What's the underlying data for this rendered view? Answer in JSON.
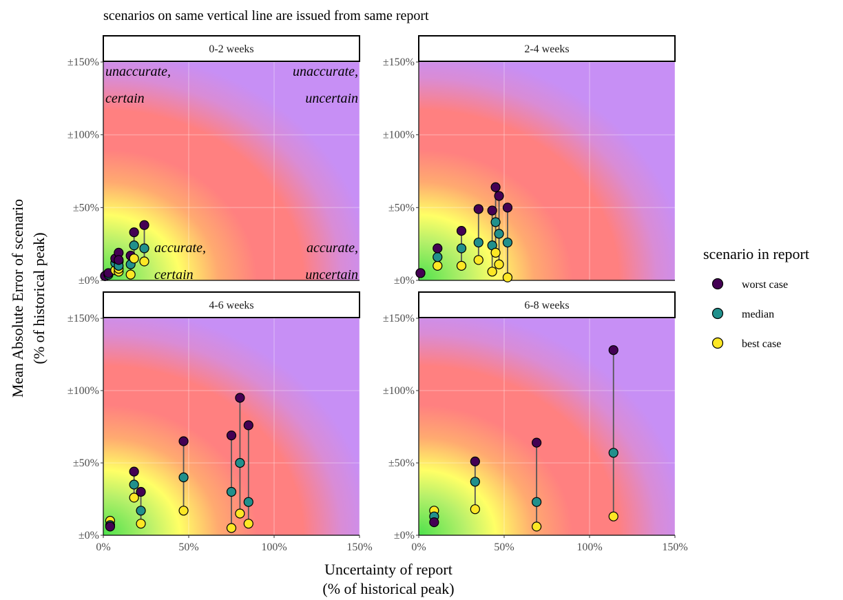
{
  "subtitle": "scenarios on same vertical line are issued from same report",
  "xlabel_line1": "Uncertainty of report",
  "xlabel_line2": "(% of historical peak)",
  "ylabel_line1": "Mean Absolute Error of scenario",
  "ylabel_line2": "(% of historical peak)",
  "x_tick_labels": [
    "0%",
    "50%",
    "100%",
    "150%"
  ],
  "y_tick_labels": [
    "±0%",
    "±50%",
    "±100%",
    "±150%"
  ],
  "annotations": {
    "top_left_1": "unaccurate,",
    "top_left_2": "certain",
    "top_right_1": "unaccurate,",
    "top_right_2": "uncertain",
    "bottom_left_1": "accurate,",
    "bottom_left_2": "certain",
    "bottom_right_1": "accurate,",
    "bottom_right_2": "uncertain"
  },
  "legend": {
    "title": "scenario in report",
    "items": [
      {
        "label": "worst case",
        "color": "#440154"
      },
      {
        "label": "median",
        "color": "#21908C"
      },
      {
        "label": "best case",
        "color": "#FDE725"
      }
    ]
  },
  "colors": {
    "background_far": "#c78ff5",
    "background_mid": "#ff8080",
    "background_near_a": "#ffff66",
    "background_near_b": "#4ce14c",
    "worst": "#440154",
    "median": "#21908C",
    "best": "#FDE725"
  },
  "chart_data": [
    {
      "type": "scatter",
      "panel": "0-2 weeks",
      "xlim": [
        0,
        150
      ],
      "ylim": [
        0,
        150
      ],
      "reports": [
        {
          "x": 1,
          "worst": 3,
          "median": 3,
          "best": 3
        },
        {
          "x": 3,
          "worst": 5,
          "median": 4,
          "best": 4
        },
        {
          "x": 7,
          "worst": 15,
          "median": 12,
          "best": 7
        },
        {
          "x": 9,
          "worst": 19,
          "median": 13,
          "best": 6
        },
        {
          "x": 9,
          "worst": 14,
          "median": 10,
          "best": 8
        },
        {
          "x": 16,
          "worst": 17,
          "median": 11,
          "best": 4
        },
        {
          "x": 18,
          "worst": 33,
          "median": 24,
          "best": 15
        },
        {
          "x": 24,
          "worst": 38,
          "median": 22,
          "best": 13
        }
      ]
    },
    {
      "type": "scatter",
      "panel": "2-4 weeks",
      "xlim": [
        0,
        150
      ],
      "ylim": [
        0,
        150
      ],
      "reports": [
        {
          "x": 1,
          "worst": 5,
          "median": 5,
          "best": 5
        },
        {
          "x": 11,
          "worst": 22,
          "median": 16,
          "best": 10
        },
        {
          "x": 25,
          "worst": 34,
          "median": 22,
          "best": 10
        },
        {
          "x": 35,
          "worst": 49,
          "median": 26,
          "best": 14
        },
        {
          "x": 43,
          "worst": 48,
          "median": 24,
          "best": 6
        },
        {
          "x": 45,
          "worst": 64,
          "median": 40,
          "best": 19
        },
        {
          "x": 47,
          "worst": 58,
          "median": 32,
          "best": 11
        },
        {
          "x": 52,
          "worst": 50,
          "median": 26,
          "best": 2
        }
      ]
    },
    {
      "type": "scatter",
      "panel": "4-6 weeks",
      "xlim": [
        0,
        150
      ],
      "ylim": [
        0,
        150
      ],
      "reports": [
        {
          "x": 4,
          "worst": 6,
          "median": 7,
          "best": 10
        },
        {
          "x": 18,
          "worst": 44,
          "median": 35,
          "best": 26
        },
        {
          "x": 22,
          "worst": 30,
          "median": 17,
          "best": 8
        },
        {
          "x": 47,
          "worst": 65,
          "median": 40,
          "best": 17
        },
        {
          "x": 75,
          "worst": 69,
          "median": 30,
          "best": 5
        },
        {
          "x": 80,
          "worst": 95,
          "median": 50,
          "best": 15
        },
        {
          "x": 85,
          "worst": 76,
          "median": 23,
          "best": 8
        }
      ]
    },
    {
      "type": "scatter",
      "panel": "6-8 weeks",
      "xlim": [
        0,
        150
      ],
      "ylim": [
        0,
        150
      ],
      "reports": [
        {
          "x": 9,
          "worst": 9,
          "median": 13,
          "best": 17
        },
        {
          "x": 33,
          "worst": 51,
          "median": 37,
          "best": 18
        },
        {
          "x": 69,
          "worst": 64,
          "median": 23,
          "best": 6
        },
        {
          "x": 114,
          "worst": 128,
          "median": 57,
          "best": 13
        }
      ]
    }
  ]
}
